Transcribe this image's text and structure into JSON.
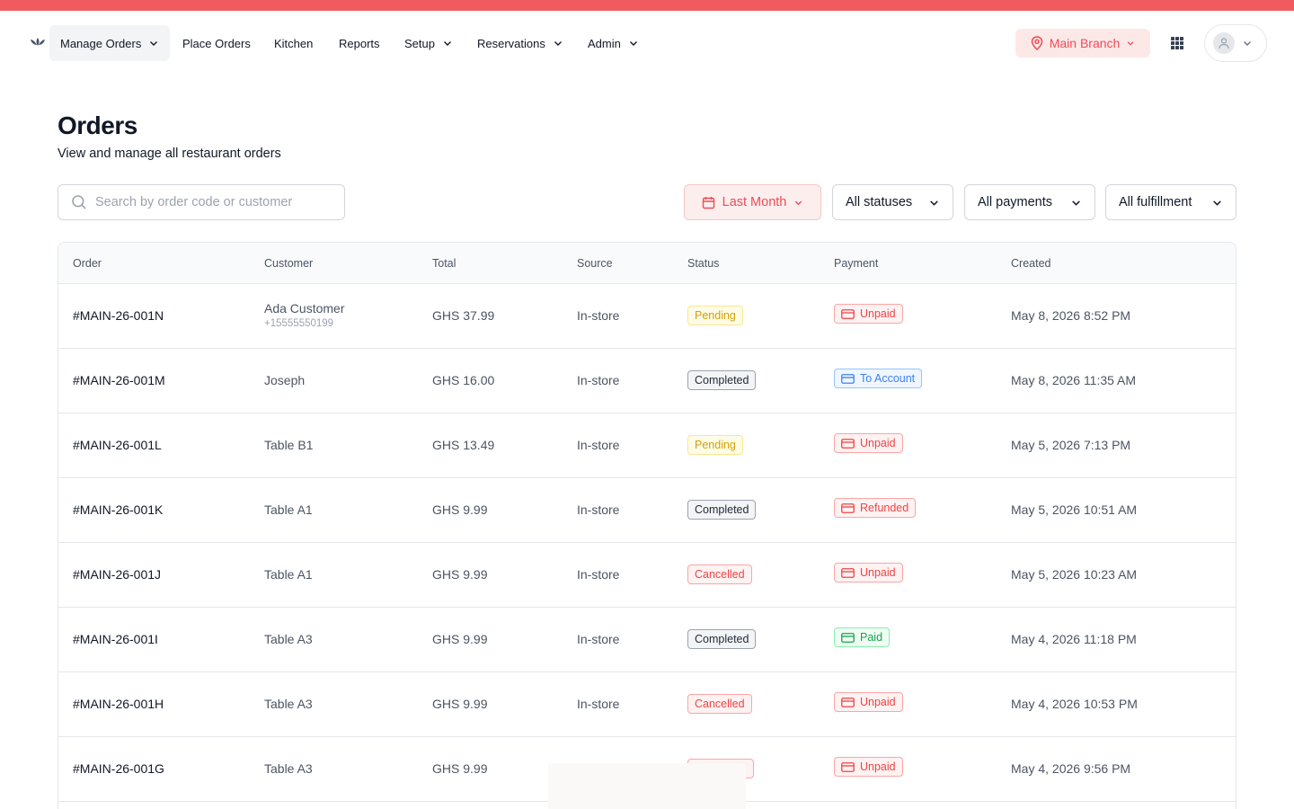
{
  "nav": {
    "items": [
      {
        "label": "Manage Orders",
        "dropdown": true,
        "active": true
      },
      {
        "label": "Place Orders",
        "dropdown": false
      },
      {
        "label": "Kitchen",
        "dropdown": false
      },
      {
        "label": "Reports",
        "dropdown": false
      },
      {
        "label": "Setup",
        "dropdown": true
      },
      {
        "label": "Reservations",
        "dropdown": true
      },
      {
        "label": "Admin",
        "dropdown": true
      }
    ],
    "branch": "Main Branch"
  },
  "page": {
    "title": "Orders",
    "subtitle": "View and manage all restaurant orders"
  },
  "filters": {
    "search_placeholder": "Search by order code or customer",
    "date": "Last Month",
    "status": "All statuses",
    "payments": "All payments",
    "fulfillment": "All fulfillment"
  },
  "table": {
    "columns": [
      "Order",
      "Customer",
      "Total",
      "Source",
      "Status",
      "Payment",
      "Created"
    ],
    "rows": [
      {
        "code": "#MAIN-26-001N",
        "customer": "Ada Customer",
        "phone": "+15555550199",
        "total": "GHS 37.99",
        "source": "In-store",
        "status": "Pending",
        "payment": "Unpaid",
        "created": "May 8, 2026 8:52 PM"
      },
      {
        "code": "#MAIN-26-001M",
        "customer": "Joseph",
        "phone": "",
        "total": "GHS 16.00",
        "source": "In-store",
        "status": "Completed",
        "payment": "To Account",
        "created": "May 8, 2026 11:35 AM"
      },
      {
        "code": "#MAIN-26-001L",
        "customer": "Table B1",
        "phone": "",
        "total": "GHS 13.49",
        "source": "In-store",
        "status": "Pending",
        "payment": "Unpaid",
        "created": "May 5, 2026 7:13 PM"
      },
      {
        "code": "#MAIN-26-001K",
        "customer": "Table A1",
        "phone": "",
        "total": "GHS 9.99",
        "source": "In-store",
        "status": "Completed",
        "payment": "Refunded",
        "created": "May 5, 2026 10:51 AM"
      },
      {
        "code": "#MAIN-26-001J",
        "customer": "Table A1",
        "phone": "",
        "total": "GHS 9.99",
        "source": "In-store",
        "status": "Cancelled",
        "payment": "Unpaid",
        "created": "May 5, 2026 10:23 AM"
      },
      {
        "code": "#MAIN-26-001I",
        "customer": "Table A3",
        "phone": "",
        "total": "GHS 9.99",
        "source": "In-store",
        "status": "Completed",
        "payment": "Paid",
        "created": "May 4, 2026 11:18 PM"
      },
      {
        "code": "#MAIN-26-001H",
        "customer": "Table A3",
        "phone": "",
        "total": "GHS 9.99",
        "source": "In-store",
        "status": "Cancelled",
        "payment": "Unpaid",
        "created": "May 4, 2026 10:53 PM"
      },
      {
        "code": "#MAIN-26-001G",
        "customer": "Table A3",
        "phone": "",
        "total": "GHS 9.99",
        "source": "",
        "status": "",
        "payment": "Unpaid",
        "created": "May 4, 2026 9:56 PM"
      }
    ]
  },
  "colors": {
    "accent": "#ef5b5f",
    "brand_text": "#ef4b55"
  }
}
